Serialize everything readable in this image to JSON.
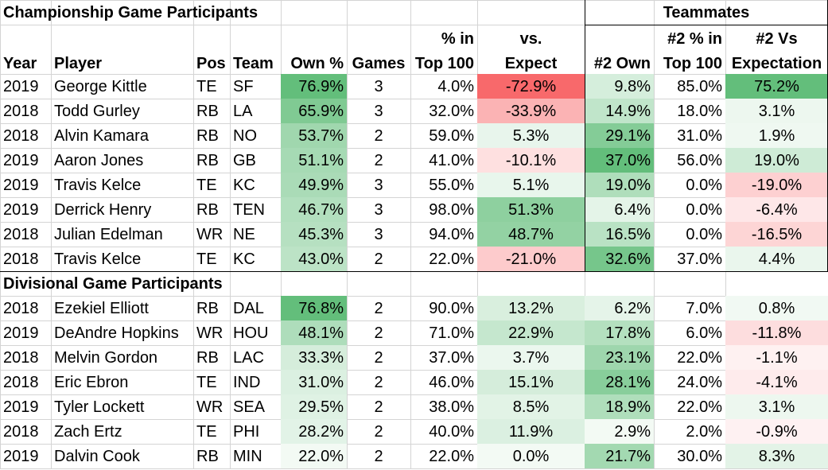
{
  "sections": {
    "championship": "Championship Game Participants",
    "teammates": "Teammates",
    "divisional": "Divisional Game Participants"
  },
  "headers": {
    "year": "Year",
    "player": "Player",
    "pos": "Pos",
    "team": "Team",
    "own": "Own %",
    "games": "Games",
    "top100_1": "% in",
    "top100_2": "Top 100",
    "vs_1": "vs.",
    "vs_2": "Expect",
    "own2": "#2 Own",
    "top2_1": "#2 % in",
    "top2_2": "Top 100",
    "vs2_1": "#2 Vs",
    "vs2_2": "Expectation"
  },
  "colors": {
    "green_strong": "#63be7b",
    "red_strong": "#f8696b",
    "white": "#ffffff"
  },
  "championship_rows": [
    {
      "year": "2019",
      "player": "George Kittle",
      "pos": "TE",
      "team": "SF",
      "own": "76.9%",
      "games": "3",
      "top100": "4.0%",
      "vs": "-72.9%",
      "own2": "9.8%",
      "top2": "85.0%",
      "vs2": "75.2%"
    },
    {
      "year": "2018",
      "player": "Todd Gurley",
      "pos": "RB",
      "team": "LA",
      "own": "65.9%",
      "games": "3",
      "top100": "32.0%",
      "vs": "-33.9%",
      "own2": "14.9%",
      "top2": "18.0%",
      "vs2": "3.1%"
    },
    {
      "year": "2018",
      "player": "Alvin Kamara",
      "pos": "RB",
      "team": "NO",
      "own": "53.7%",
      "games": "2",
      "top100": "59.0%",
      "vs": "5.3%",
      "own2": "29.1%",
      "top2": "31.0%",
      "vs2": "1.9%"
    },
    {
      "year": "2019",
      "player": "Aaron Jones",
      "pos": "RB",
      "team": "GB",
      "own": "51.1%",
      "games": "2",
      "top100": "41.0%",
      "vs": "-10.1%",
      "own2": "37.0%",
      "top2": "56.0%",
      "vs2": "19.0%"
    },
    {
      "year": "2019",
      "player": "Travis Kelce",
      "pos": "TE",
      "team": "KC",
      "own": "49.9%",
      "games": "3",
      "top100": "55.0%",
      "vs": "5.1%",
      "own2": "19.0%",
      "top2": "0.0%",
      "vs2": "-19.0%"
    },
    {
      "year": "2019",
      "player": "Derrick Henry",
      "pos": "RB",
      "team": "TEN",
      "own": "46.7%",
      "games": "3",
      "top100": "98.0%",
      "vs": "51.3%",
      "own2": "6.4%",
      "top2": "0.0%",
      "vs2": "-6.4%"
    },
    {
      "year": "2018",
      "player": "Julian Edelman",
      "pos": "WR",
      "team": "NE",
      "own": "45.3%",
      "games": "3",
      "top100": "94.0%",
      "vs": "48.7%",
      "own2": "16.5%",
      "top2": "0.0%",
      "vs2": "-16.5%"
    },
    {
      "year": "2018",
      "player": "Travis Kelce",
      "pos": "TE",
      "team": "KC",
      "own": "43.0%",
      "games": "2",
      "top100": "22.0%",
      "vs": "-21.0%",
      "own2": "32.6%",
      "top2": "37.0%",
      "vs2": "4.4%"
    }
  ],
  "divisional_rows": [
    {
      "year": "2018",
      "player": "Ezekiel Elliott",
      "pos": "RB",
      "team": "DAL",
      "own": "76.8%",
      "games": "2",
      "top100": "90.0%",
      "vs": "13.2%",
      "own2": "6.2%",
      "top2": "7.0%",
      "vs2": "0.8%"
    },
    {
      "year": "2019",
      "player": "DeAndre Hopkins",
      "pos": "WR",
      "team": "HOU",
      "own": "48.1%",
      "games": "2",
      "top100": "71.0%",
      "vs": "22.9%",
      "own2": "17.8%",
      "top2": "6.0%",
      "vs2": "-11.8%"
    },
    {
      "year": "2018",
      "player": "Melvin Gordon",
      "pos": "RB",
      "team": "LAC",
      "own": "33.3%",
      "games": "2",
      "top100": "37.0%",
      "vs": "3.7%",
      "own2": "23.1%",
      "top2": "22.0%",
      "vs2": "-1.1%"
    },
    {
      "year": "2018",
      "player": "Eric Ebron",
      "pos": "TE",
      "team": "IND",
      "own": "31.0%",
      "games": "2",
      "top100": "46.0%",
      "vs": "15.1%",
      "own2": "28.1%",
      "top2": "24.0%",
      "vs2": "-4.1%"
    },
    {
      "year": "2019",
      "player": "Tyler Lockett",
      "pos": "WR",
      "team": "SEA",
      "own": "29.5%",
      "games": "2",
      "top100": "38.0%",
      "vs": "8.5%",
      "own2": "18.9%",
      "top2": "22.0%",
      "vs2": "3.1%"
    },
    {
      "year": "2018",
      "player": "Zach Ertz",
      "pos": "TE",
      "team": "PHI",
      "own": "28.2%",
      "games": "2",
      "top100": "40.0%",
      "vs": "11.9%",
      "own2": "2.9%",
      "top2": "2.0%",
      "vs2": "-0.9%"
    },
    {
      "year": "2019",
      "player": "Dalvin Cook",
      "pos": "RB",
      "team": "MIN",
      "own": "22.0%",
      "games": "2",
      "top100": "22.0%",
      "vs": "0.0%",
      "own2": "21.7%",
      "top2": "30.0%",
      "vs2": "8.3%"
    }
  ]
}
